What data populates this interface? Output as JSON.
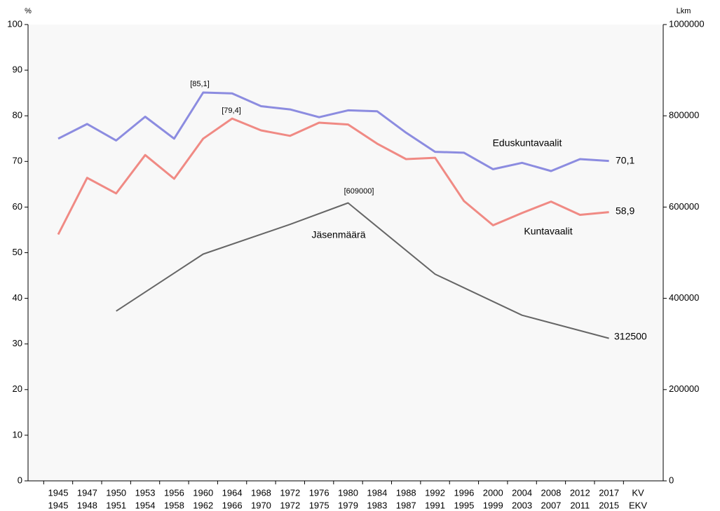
{
  "chart_data": {
    "type": "line",
    "y_label": "%",
    "y2_label": "Lkm",
    "categories": [
      "1945",
      "1947",
      "1950",
      "1953",
      "1956",
      "1960",
      "1964",
      "1968",
      "1972",
      "1976",
      "1980",
      "1984",
      "1988",
      "1992",
      "1996",
      "2000",
      "2004",
      "2008",
      "2012",
      "2017",
      "KV"
    ],
    "categories2": [
      "1945",
      "1948",
      "1951",
      "1954",
      "1958",
      "1962",
      "1966",
      "1970",
      "1972",
      "1975",
      "1979",
      "1983",
      "1987",
      "1991",
      "1995",
      "1999",
      "2003",
      "2007",
      "2011",
      "2015",
      "EKV"
    ],
    "ylim": [
      0,
      100
    ],
    "yticks": [
      0,
      10,
      20,
      30,
      40,
      50,
      60,
      70,
      80,
      90,
      100
    ],
    "y2lim": [
      0,
      1000000
    ],
    "y2ticks": [
      0,
      200000,
      400000,
      600000,
      800000,
      1000000
    ],
    "series": [
      {
        "name": "Eduskuntavaalit",
        "color": "#8c8ce0",
        "values": [
          75.0,
          78.2,
          74.6,
          79.8,
          75.0,
          85.1,
          84.9,
          82.1,
          81.4,
          79.7,
          81.2,
          81.0,
          76.3,
          72.1,
          71.9,
          68.3,
          69.7,
          67.9,
          70.5,
          70.1,
          null
        ]
      },
      {
        "name": "Kuntavaalit",
        "color": "#f08a84",
        "values": [
          54.0,
          66.4,
          63.0,
          71.4,
          66.2,
          75.0,
          79.4,
          76.8,
          75.6,
          78.5,
          78.1,
          73.9,
          70.5,
          70.8,
          61.3,
          56.0,
          58.7,
          61.2,
          58.3,
          58.9,
          null
        ]
      },
      {
        "name": "Jäsenmäärä",
        "color": "#666666",
        "axis": "y2",
        "values": [
          null,
          null,
          372000,
          null,
          null,
          497000,
          null,
          null,
          562000,
          null,
          609000,
          null,
          null,
          453000,
          null,
          null,
          363000,
          null,
          null,
          312500,
          null
        ]
      }
    ],
    "annotations": [
      "[85,1]",
      "[79,4]",
      "[609000]",
      "70,1",
      "58,9",
      "312500"
    ]
  }
}
